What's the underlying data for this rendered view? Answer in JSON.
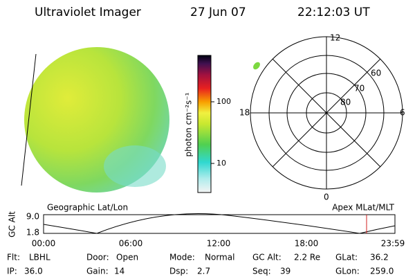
{
  "header": {
    "instrument": "Ultraviolet Imager",
    "date": "27 Jun 07",
    "time": "22:12:03 UT"
  },
  "colorbar": {
    "label": "photon cm⁻²s⁻¹",
    "ticks": [
      "100",
      "10"
    ]
  },
  "polar": {
    "top": "12",
    "bottom": "0",
    "left": "18",
    "right": "6",
    "rings": [
      "60",
      "70",
      "80"
    ]
  },
  "alt_plot": {
    "y_label": "GC Alt",
    "y_ticks": [
      "9.0",
      "1.8"
    ],
    "left_title": "Geographic Lat/Lon",
    "right_title": "Apex MLat/MLT",
    "x_ticks": [
      "00:00",
      "06:00",
      "12:00",
      "18:00",
      "23:59"
    ]
  },
  "footer": {
    "rows": [
      [
        {
          "label": "Flt:",
          "value": "LBHL"
        },
        {
          "label": "Door:",
          "value": "Open"
        },
        {
          "label": "Mode:",
          "value": "Normal"
        },
        {
          "label": "GC Alt:",
          "value": "2.2 Re"
        },
        {
          "label": "GLat:",
          "value": "36.2"
        }
      ],
      [
        {
          "label": "IP:",
          "value": "36.0"
        },
        {
          "label": "Gain:",
          "value": "14"
        },
        {
          "label": "Dsp:",
          "value": "2.7"
        },
        {
          "label": "Seq:",
          "value": "39"
        },
        {
          "label": "GLon:",
          "value": "259.0"
        }
      ]
    ]
  }
}
